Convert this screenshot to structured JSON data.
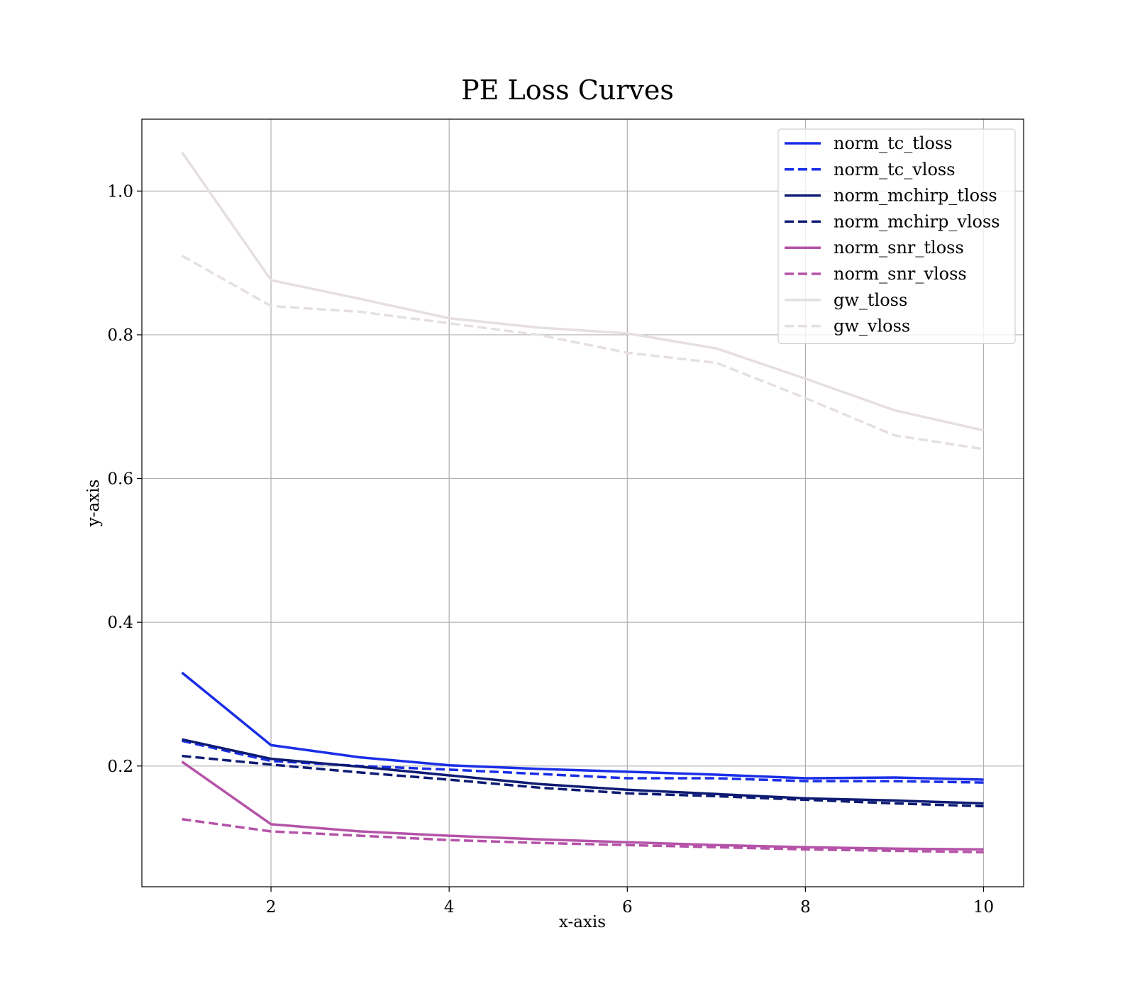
{
  "chart_data": {
    "type": "line",
    "title": "PE Loss Curves",
    "xlabel": "x-axis",
    "ylabel": "y-axis",
    "xlim": [
      0.55,
      10.45
    ],
    "ylim": [
      0.032,
      1.1
    ],
    "xticks": [
      2,
      4,
      6,
      8,
      10
    ],
    "xtick_labels": [
      "2",
      "4",
      "6",
      "8",
      "10"
    ],
    "yticks": [
      0.2,
      0.4,
      0.6,
      0.8,
      1.0
    ],
    "ytick_labels": [
      "0.2",
      "0.4",
      "0.6",
      "0.8",
      "1.0"
    ],
    "grid": true,
    "legend_position": "top-right",
    "x": [
      1,
      2,
      3,
      4,
      5,
      6,
      7,
      8,
      9,
      10
    ],
    "series": [
      {
        "name": "norm_tc_tloss",
        "color": "#1a2ee6",
        "dash": "solid",
        "values": [
          0.33,
          0.229,
          0.212,
          0.201,
          0.196,
          0.192,
          0.188,
          0.183,
          0.184,
          0.181
        ]
      },
      {
        "name": "norm_tc_vloss",
        "color": "#1a2ee6",
        "dash": "dashed",
        "values": [
          0.235,
          0.207,
          0.2,
          0.195,
          0.189,
          0.183,
          0.183,
          0.179,
          0.179,
          0.177
        ]
      },
      {
        "name": "norm_mchirp_tloss",
        "color": "#0e1b73",
        "dash": "solid",
        "values": [
          0.237,
          0.21,
          0.199,
          0.187,
          0.175,
          0.167,
          0.161,
          0.155,
          0.152,
          0.148
        ]
      },
      {
        "name": "norm_mchirp_vloss",
        "color": "#0e1b73",
        "dash": "dashed",
        "values": [
          0.214,
          0.202,
          0.191,
          0.181,
          0.17,
          0.162,
          0.158,
          0.153,
          0.148,
          0.144
        ]
      },
      {
        "name": "norm_snr_tloss",
        "color": "#b553a8",
        "dash": "solid",
        "values": [
          0.206,
          0.119,
          0.109,
          0.103,
          0.098,
          0.094,
          0.09,
          0.087,
          0.085,
          0.084
        ]
      },
      {
        "name": "norm_snr_vloss",
        "color": "#b553a8",
        "dash": "dashed",
        "values": [
          0.126,
          0.109,
          0.103,
          0.097,
          0.093,
          0.09,
          0.087,
          0.084,
          0.082,
          0.08
        ]
      },
      {
        "name": "gw_tloss",
        "color": "#e6dfe2",
        "dash": "solid",
        "values": [
          1.054,
          0.876,
          0.85,
          0.823,
          0.81,
          0.802,
          0.781,
          0.739,
          0.695,
          0.667
        ]
      },
      {
        "name": "gw_vloss",
        "color": "#e6dfe2",
        "dash": "dashed",
        "values": [
          0.91,
          0.84,
          0.832,
          0.816,
          0.8,
          0.775,
          0.761,
          0.712,
          0.66,
          0.641
        ]
      }
    ]
  }
}
